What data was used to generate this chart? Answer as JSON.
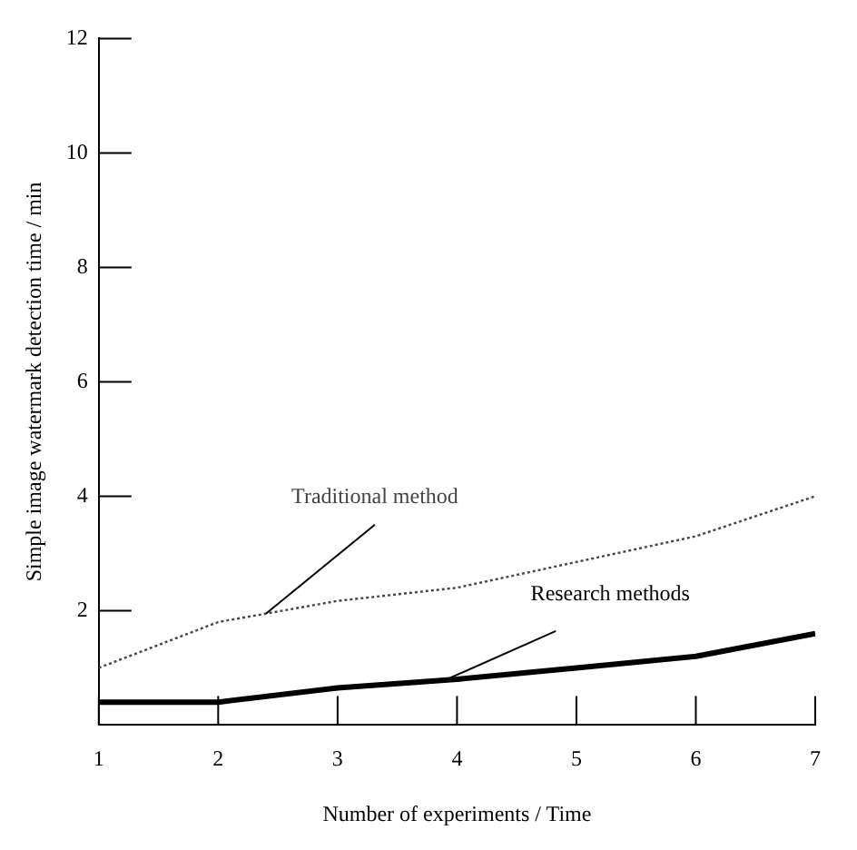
{
  "chart_data": {
    "type": "line",
    "xlabel": "Number of experiments / Time",
    "ylabel": "Simple image watermark detection time / min",
    "x": [
      1,
      2,
      3,
      4,
      5,
      6,
      7
    ],
    "xlim": [
      1,
      7
    ],
    "xticks": [
      1,
      2,
      3,
      4,
      5,
      6,
      7
    ],
    "ylim": [
      0,
      12
    ],
    "yticks": [
      2,
      4,
      6,
      8,
      10,
      12
    ],
    "series": [
      {
        "name": "Traditional method",
        "color": "#444444",
        "line_style": "dotted",
        "values": [
          1.0,
          1.8,
          2.17,
          2.4,
          2.85,
          3.3,
          4.0
        ]
      },
      {
        "name": "Research methods",
        "color": "#000000",
        "line_style": "solid",
        "values": [
          0.4,
          0.4,
          0.65,
          0.8,
          1.0,
          1.2,
          1.6
        ]
      }
    ],
    "grid": false,
    "legend": false,
    "marker": "none"
  }
}
